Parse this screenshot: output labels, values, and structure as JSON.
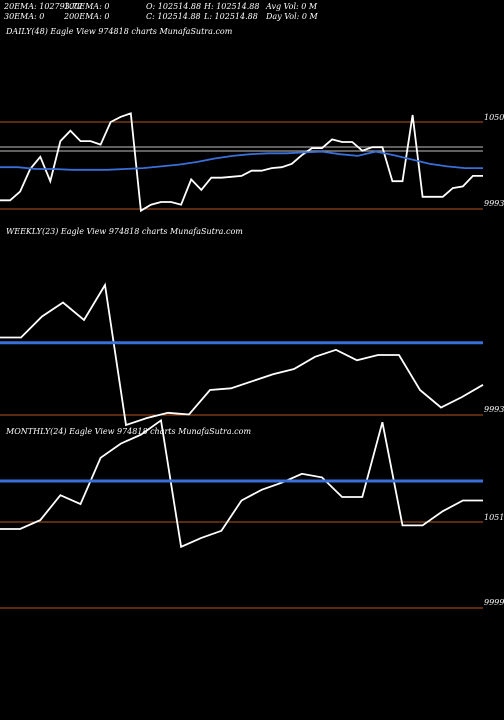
{
  "header": {
    "l1c1": "20EMA: 102793.72",
    "l1c2": "100EMA: 0",
    "l1c3": "O: 102514.88",
    "l1c4": "H: 102514.88",
    "l1c5": "Avg Vol: 0  M",
    "l2c1": "30EMA: 0",
    "l2c2": "200EMA: 0",
    "l2c3": "C: 102514.88",
    "l2c4": "L: 102514.88",
    "l2c5": "Day Vol: 0  M"
  },
  "colors": {
    "line": "#ffffff",
    "ema": "#3a6fd8",
    "level": "#b5561e",
    "gray": "#9a9a9a",
    "bg": "#000000"
  },
  "chart_data": [
    {
      "type": "line",
      "title": "DAILY(48) Eagle   View  974818  charts MunafaSutra.com",
      "ytick_labels": [
        "1050",
        "9993"
      ],
      "series": [
        {
          "values": [
            0.1,
            0.1,
            0.2,
            0.46,
            0.6,
            0.32,
            0.78,
            0.9,
            0.78,
            0.78,
            0.74,
            1.0,
            1.06,
            1.1,
            -0.02,
            0.05,
            0.08,
            0.08,
            0.05,
            0.34,
            0.22,
            0.36,
            0.36,
            0.37,
            0.38,
            0.44,
            0.44,
            0.47,
            0.48,
            0.52,
            0.62,
            0.7,
            0.7,
            0.8,
            0.77,
            0.77,
            0.67,
            0.71,
            0.71,
            0.32,
            0.32,
            1.08,
            0.14,
            0.14,
            0.14,
            0.24,
            0.26,
            0.38,
            0.38
          ]
        },
        {
          "values": [
            0.48,
            0.48,
            0.46,
            0.46,
            0.45,
            0.45,
            0.45,
            0.46,
            0.47,
            0.49,
            0.51,
            0.54,
            0.58,
            0.61,
            0.63,
            0.64,
            0.64,
            0.65,
            0.66,
            0.63,
            0.61,
            0.66,
            0.62,
            0.57,
            0.52,
            0.49,
            0.47,
            0.47
          ]
        }
      ]
    },
    {
      "type": "line",
      "title": "WEEKLY(23) Eagle   View  974818  charts MunafaSutra.com",
      "ytick_labels": [
        "",
        "9993"
      ],
      "series": [
        {
          "values": [
            0.5,
            0.5,
            0.62,
            0.7,
            0.6,
            0.8,
            0.0,
            0.04,
            0.07,
            0.06,
            0.2,
            0.21,
            0.25,
            0.29,
            0.32,
            0.39,
            0.43,
            0.37,
            0.4,
            0.4,
            0.2,
            0.1,
            0.16,
            0.23
          ]
        },
        {
          "values": [
            0.47
          ]
        }
      ]
    },
    {
      "type": "line",
      "title": "MONTHLY(24) Eagle   View  974818  charts MunafaSutra.com",
      "ytick_labels": [
        "1051",
        "9999"
      ],
      "series": [
        {
          "values": [
            0.5,
            0.5,
            0.55,
            0.69,
            0.64,
            0.9,
            0.98,
            1.03,
            1.11,
            0.4,
            0.45,
            0.49,
            0.66,
            0.72,
            0.76,
            0.81,
            0.79,
            0.68,
            0.68,
            1.1,
            0.52,
            0.52,
            0.6,
            0.66,
            0.66
          ]
        },
        {
          "values": [
            0.77
          ]
        }
      ]
    }
  ]
}
